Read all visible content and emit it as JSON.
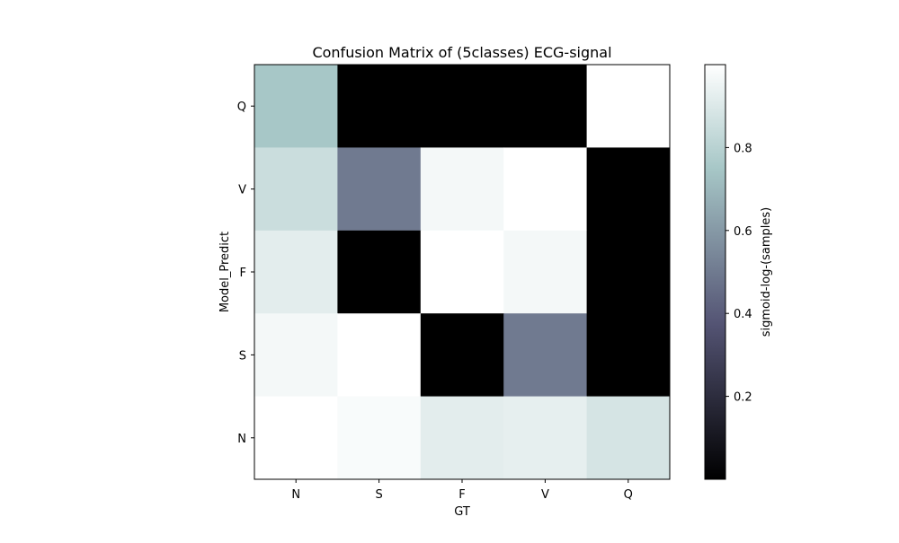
{
  "chart_data": {
    "type": "heatmap",
    "title": "Confusion Matrix of (5classes) ECG-signal",
    "xlabel": "GT",
    "ylabel": "Model_Predict",
    "x_categories": [
      "N",
      "S",
      "F",
      "V",
      "Q"
    ],
    "y_categories_top_to_bottom": [
      "Q",
      "V",
      "F",
      "S",
      "N"
    ],
    "values_top_to_bottom": [
      [
        0.75,
        0.0,
        0.0,
        0.0,
        1.0
      ],
      [
        0.85,
        0.5,
        0.97,
        1.0,
        0.0
      ],
      [
        0.92,
        0.0,
        1.0,
        0.97,
        0.0
      ],
      [
        0.97,
        1.0,
        0.0,
        0.5,
        0.0
      ],
      [
        1.0,
        0.98,
        0.92,
        0.93,
        0.88
      ]
    ],
    "colormap": "bone",
    "colorbar": {
      "label": "sigmoid-log-(samples)",
      "ticks": [
        "0.2",
        "0.4",
        "0.6",
        "0.8"
      ],
      "tick_values": [
        0.2,
        0.4,
        0.6,
        0.8
      ],
      "range": [
        0.0,
        1.0
      ]
    }
  }
}
